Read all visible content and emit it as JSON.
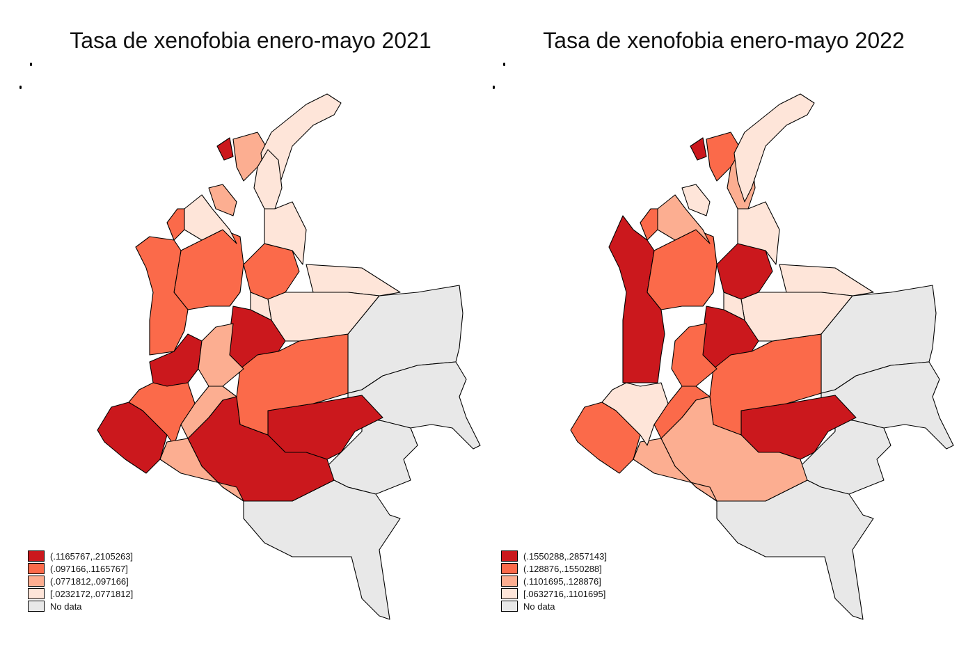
{
  "maps": [
    {
      "title": "Tasa de xenofobia enero-mayo 2021",
      "legend": [
        {
          "label": "(.1165767,.2105263]",
          "color": "#cb181d"
        },
        {
          "label": "(.097166,.1165767]",
          "color": "#fb6a4a"
        },
        {
          "label": "(.0771812,.097166]",
          "color": "#fcae91"
        },
        {
          "label": "[.0232172,.0771812]",
          "color": "#fee5d9"
        },
        {
          "label": "No data",
          "color": "#e8e8e8"
        }
      ]
    },
    {
      "title": "Tasa de xenofobia enero-mayo 2022",
      "legend": [
        {
          "label": "(.1550288,.2857143]",
          "color": "#cb181d"
        },
        {
          "label": "(.128876,.1550288]",
          "color": "#fb6a4a"
        },
        {
          "label": "(.1101695,.128876]",
          "color": "#fcae91"
        },
        {
          "label": "[.0632716,.1101695]",
          "color": "#fee5d9"
        },
        {
          "label": "No data",
          "color": "#e8e8e8"
        }
      ]
    }
  ]
}
